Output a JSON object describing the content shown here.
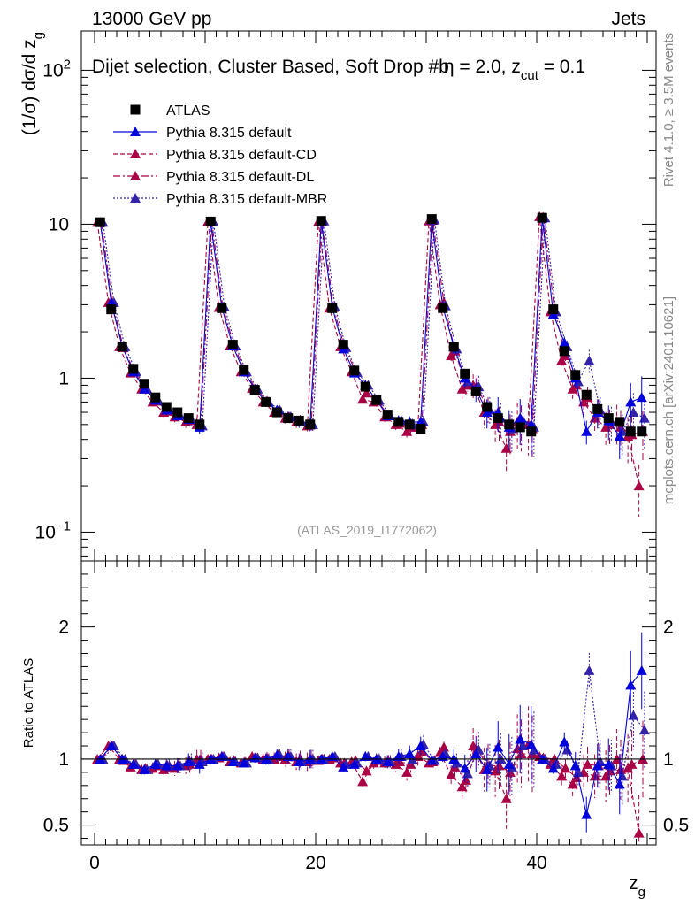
{
  "header": {
    "energy_label": "13000 GeV pp",
    "category_label": "Jets",
    "selection_label": "Dijet selection, Cluster Based, Soft Drop #b",
    "beta_label": "η = 2.0, z",
    "cut_sub": "cut",
    "cut_value": " = 0.1",
    "analysis_id": "(ATLAS_2019_I1772062)",
    "side_label_top": "Rivet 4.1.0, ≥ 3.5M events",
    "side_label_bottom": "mcplots.cern.ch [arXiv:2401.10621]"
  },
  "chart_data": [
    {
      "type": "scatter",
      "panel": "main",
      "ylabel": "(1/σ) dσ/d z_g",
      "xlabel": "z_g",
      "xlim": [
        -1.2,
        50.8
      ],
      "ylim": [
        0.065,
        180
      ],
      "yscale": "log",
      "yticks": [
        {
          "v": 0.1,
          "label": "10",
          "exp": "−1"
        },
        {
          "v": 1,
          "label": "1",
          "exp": ""
        },
        {
          "v": 10,
          "label": "10",
          "exp": ""
        },
        {
          "v": 100,
          "label": "10",
          "exp": "2"
        }
      ],
      "legend": [
        {
          "name": "ATLAS",
          "color": "#000000",
          "marker": "square",
          "dash": ""
        },
        {
          "name": "Pythia 8.315 default",
          "color": "#0000dd",
          "marker": "triangle",
          "dash": ""
        },
        {
          "name": "Pythia 8.315 default-CD",
          "color": "#aa0044",
          "marker": "triangle",
          "dash": "5,3"
        },
        {
          "name": "Pythia 8.315 default-DL",
          "color": "#aa0044",
          "marker": "triangle",
          "dash": "8,3,2,3"
        },
        {
          "name": "Pythia 8.315 default-MBR",
          "color": "#3322aa",
          "marker": "triangle",
          "dash": "2,2"
        }
      ],
      "series": [
        {
          "name": "ATLAS",
          "values": [
            10.3,
            2.8,
            1.6,
            1.15,
            0.92,
            0.75,
            0.65,
            0.6,
            0.55,
            0.5,
            10.4,
            2.85,
            1.65,
            1.13,
            0.84,
            0.7,
            0.6,
            0.55,
            0.53,
            0.5,
            10.5,
            2.85,
            1.65,
            1.12,
            0.88,
            0.72,
            0.58,
            0.52,
            0.5,
            0.47,
            10.8,
            2.85,
            1.6,
            1.07,
            0.82,
            0.65,
            0.55,
            0.5,
            0.48,
            0.45,
            11.0,
            2.8,
            1.5,
            1.05,
            0.78,
            0.63,
            0.55,
            0.52,
            0.45,
            0.45
          ]
        },
        {
          "name": "Pythia 8.315 default",
          "values": [
            10.3,
            3.1,
            1.6,
            1.1,
            0.85,
            0.72,
            0.62,
            0.57,
            0.54,
            0.48,
            10.4,
            2.9,
            1.62,
            1.1,
            0.85,
            0.7,
            0.62,
            0.56,
            0.52,
            0.5,
            10.5,
            2.9,
            1.55,
            1.08,
            0.9,
            0.72,
            0.57,
            0.53,
            0.52,
            0.52,
            10.7,
            2.9,
            1.6,
            1.0,
            0.85,
            0.6,
            0.6,
            0.48,
            0.55,
            0.5,
            11.0,
            2.6,
            1.7,
            1.0,
            0.45,
            0.6,
            0.53,
            0.42,
            0.7,
            0.75
          ]
        },
        {
          "name": "Pythia 8.315 default-CD",
          "values": [
            10.3,
            3.1,
            1.6,
            1.08,
            0.85,
            0.7,
            0.6,
            0.56,
            0.52,
            0.5,
            10.4,
            2.88,
            1.62,
            1.1,
            0.86,
            0.7,
            0.6,
            0.55,
            0.52,
            0.49,
            10.4,
            2.85,
            1.6,
            1.1,
            0.73,
            0.7,
            0.56,
            0.5,
            0.45,
            0.48,
            10.5,
            3.0,
            1.4,
            0.85,
            0.9,
            0.6,
            0.5,
            0.35,
            0.52,
            0.5,
            11.2,
            2.7,
            1.3,
            0.85,
            0.7,
            0.55,
            0.48,
            0.52,
            0.42,
            0.2
          ]
        },
        {
          "name": "Pythia 8.315 default-DL",
          "values": [
            10.3,
            3.1,
            1.58,
            1.1,
            0.86,
            0.71,
            0.61,
            0.57,
            0.53,
            0.5,
            10.4,
            2.9,
            1.64,
            1.11,
            0.85,
            0.71,
            0.61,
            0.56,
            0.53,
            0.5,
            10.5,
            2.88,
            1.6,
            1.11,
            0.8,
            0.71,
            0.57,
            0.51,
            0.48,
            0.5,
            10.6,
            3.1,
            1.5,
            0.9,
            0.88,
            0.62,
            0.52,
            0.45,
            0.5,
            0.47,
            11.1,
            2.8,
            1.4,
            0.9,
            0.75,
            0.6,
            0.5,
            0.48,
            0.43,
            0.45
          ]
        },
        {
          "name": "Pythia 8.315 default-MBR",
          "values": [
            10.3,
            3.1,
            1.6,
            1.1,
            0.85,
            0.72,
            0.62,
            0.57,
            0.54,
            0.49,
            10.4,
            2.9,
            1.62,
            1.1,
            0.85,
            0.7,
            0.62,
            0.56,
            0.52,
            0.5,
            10.5,
            2.9,
            1.58,
            1.09,
            0.9,
            0.72,
            0.57,
            0.53,
            0.5,
            0.52,
            10.7,
            2.95,
            1.55,
            0.95,
            0.88,
            0.62,
            0.55,
            0.47,
            0.53,
            0.48,
            11.0,
            2.7,
            1.6,
            0.95,
            1.3,
            0.62,
            0.52,
            0.45,
            0.6,
            0.55
          ]
        }
      ]
    },
    {
      "type": "scatter",
      "panel": "ratio",
      "ylabel": "Ratio to ATLAS",
      "xlabel": "z_g",
      "xlim": [
        -1.2,
        50.8
      ],
      "ylim": [
        0.35,
        2.5
      ],
      "yticks": [
        0.5,
        1,
        2
      ],
      "xticks": [
        0,
        20,
        40
      ],
      "series": [
        {
          "name": "Pythia 8.315 default",
          "values": [
            1.0,
            1.1,
            1.0,
            0.96,
            0.92,
            0.96,
            0.95,
            0.95,
            0.98,
            0.96,
            1.0,
            1.02,
            0.98,
            0.97,
            1.01,
            1.0,
            1.03,
            1.02,
            0.98,
            1.0,
            1.0,
            1.02,
            0.94,
            0.96,
            1.02,
            1.0,
            0.98,
            1.02,
            1.04,
            1.1,
            0.99,
            1.02,
            1.0,
            0.93,
            1.04,
            0.92,
            1.09,
            0.96,
            1.15,
            1.11,
            1.0,
            0.93,
            1.13,
            0.95,
            0.58,
            0.95,
            0.96,
            0.81,
            1.56,
            1.67
          ]
        },
        {
          "name": "Pythia 8.315 default-CD",
          "values": [
            1.0,
            1.1,
            1.0,
            0.94,
            0.92,
            0.93,
            0.92,
            0.93,
            0.95,
            1.0,
            1.0,
            1.01,
            0.98,
            0.97,
            1.02,
            1.0,
            1.0,
            1.0,
            0.98,
            0.98,
            0.99,
            1.0,
            0.97,
            0.98,
            0.83,
            0.97,
            0.97,
            0.96,
            0.9,
            1.02,
            0.97,
            1.05,
            0.88,
            0.79,
            1.1,
            0.92,
            0.91,
            0.7,
            1.08,
            1.11,
            1.02,
            0.96,
            0.87,
            0.81,
            0.9,
            0.87,
            0.87,
            1.0,
            0.93,
            0.44
          ]
        },
        {
          "name": "Pythia 8.315 default-DL",
          "values": [
            1.0,
            1.1,
            0.99,
            0.96,
            0.93,
            0.95,
            0.94,
            0.95,
            0.96,
            1.0,
            1.0,
            1.02,
            0.99,
            0.98,
            1.01,
            1.01,
            1.02,
            1.02,
            1.0,
            1.0,
            1.0,
            1.01,
            0.97,
            0.99,
            0.91,
            0.99,
            0.98,
            0.98,
            0.96,
            1.06,
            0.98,
            1.09,
            0.94,
            0.84,
            1.07,
            0.95,
            0.95,
            0.9,
            1.04,
            1.04,
            1.01,
            1.0,
            0.93,
            0.86,
            0.96,
            0.95,
            0.91,
            0.92,
            0.96,
            1.0
          ]
        },
        {
          "name": "Pythia 8.315 default-MBR",
          "values": [
            1.0,
            1.1,
            1.0,
            0.96,
            0.92,
            0.96,
            0.95,
            0.95,
            0.98,
            0.98,
            1.0,
            1.02,
            0.98,
            0.97,
            1.01,
            1.0,
            1.03,
            1.02,
            0.98,
            1.0,
            1.0,
            1.02,
            0.96,
            0.97,
            1.02,
            1.0,
            0.98,
            1.02,
            1.0,
            1.11,
            0.99,
            1.04,
            0.97,
            0.89,
            1.07,
            0.95,
            1.0,
            0.94,
            1.1,
            1.07,
            1.0,
            0.96,
            1.07,
            0.9,
            1.67,
            0.98,
            0.95,
            0.87,
            1.33,
            1.22
          ]
        }
      ]
    }
  ]
}
